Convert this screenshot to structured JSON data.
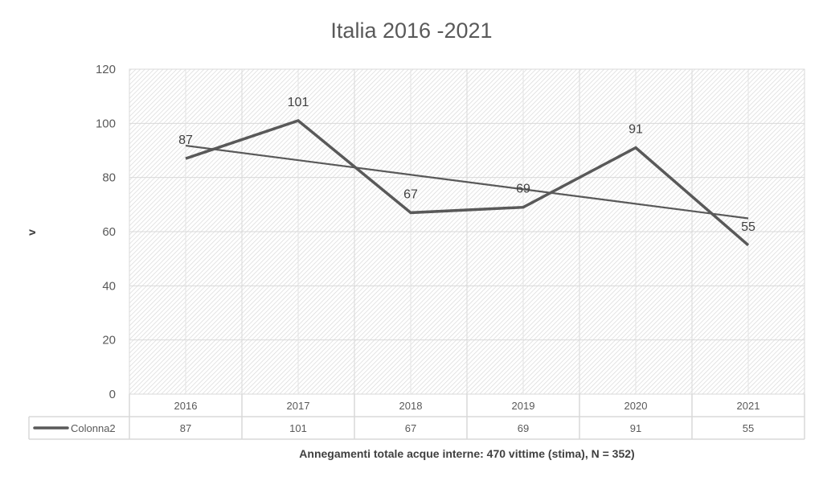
{
  "chart_data": {
    "type": "line",
    "title": "Italia 2016 -2021",
    "xlabel": "Annegamenti totale acque interne: 470 vittime  (stima), N = 352)",
    "ylabel": "v",
    "categories": [
      "2016",
      "2017",
      "2018",
      "2019",
      "2020",
      "2021"
    ],
    "series": [
      {
        "name": "Colonna2",
        "values": [
          87,
          101,
          67,
          69,
          91,
          55
        ],
        "color": "#595959"
      }
    ],
    "trendline": {
      "type": "linear",
      "series": "Colonna2",
      "color": "#595959"
    },
    "ylim": [
      0,
      120
    ],
    "yticks": [
      0,
      20,
      40,
      60,
      80,
      100,
      120
    ],
    "grid": true,
    "data_labels": true,
    "data_table": true,
    "legend": "data-table-left",
    "plot_background": "diagonal-hatch"
  }
}
